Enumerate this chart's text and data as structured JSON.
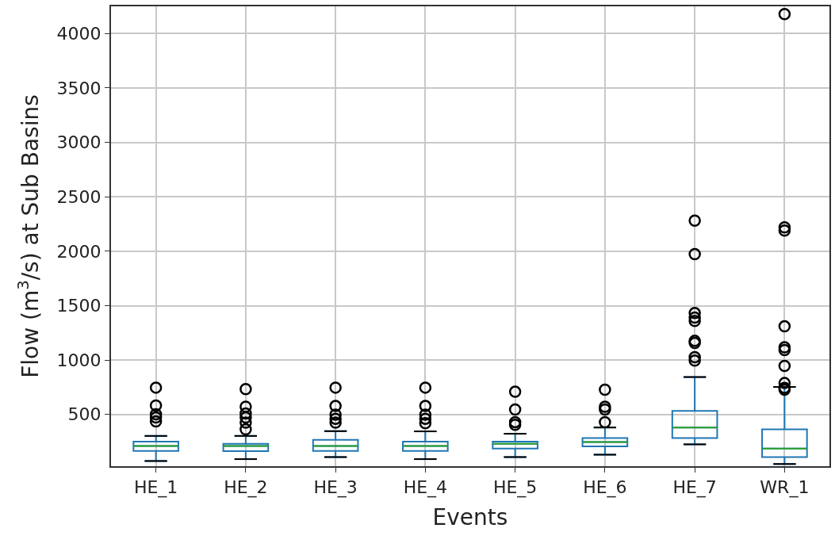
{
  "chart_data": {
    "type": "box",
    "xlabel": "Events",
    "ylabel": "Flow (m$^{3}$/s) at Sub Basins",
    "categories": [
      "HE_1",
      "HE_2",
      "HE_3",
      "HE_4",
      "HE_5",
      "HE_6",
      "HE_7",
      "WR_1"
    ],
    "series": [
      {
        "color": "#1f77b4",
        "boxes": [
          {
            "low": 73,
            "q1": 165,
            "median": 211,
            "q3": 250,
            "high": 303,
            "outliers": [
              747,
              582,
              502,
              473,
              437
            ]
          },
          {
            "low": 90,
            "q1": 163,
            "median": 211,
            "q3": 231,
            "high": 303,
            "outliers": [
              733,
              571,
              510,
              473,
              425,
              364
            ]
          },
          {
            "low": 109,
            "q1": 165,
            "median": 211,
            "q3": 267,
            "high": 347,
            "outliers": [
              747,
              578,
              498,
              461,
              425
            ]
          },
          {
            "low": 90,
            "q1": 165,
            "median": 211,
            "q3": 250,
            "high": 345,
            "outliers": [
              747,
              578,
              498,
              461,
              420
            ]
          },
          {
            "low": 109,
            "q1": 187,
            "median": 231,
            "q3": 250,
            "high": 323,
            "outliers": [
              709,
              546,
              430,
              405
            ]
          },
          {
            "low": 131,
            "q1": 207,
            "median": 247,
            "q3": 284,
            "high": 381,
            "outliers": [
              728,
              571,
              546,
              429
            ]
          },
          {
            "low": 226,
            "q1": 284,
            "median": 381,
            "q3": 534,
            "high": 844,
            "outliers": [
              2281,
              1973,
              1432,
              1390,
              1359,
              1177,
              1157,
              1026,
              995
            ]
          },
          {
            "low": 45,
            "q1": 109,
            "median": 187,
            "q3": 364,
            "high": 753,
            "outliers": [
              4179,
              2220,
              2190,
              1310,
              1117,
              1092,
              946,
              789,
              745,
              728
            ]
          }
        ]
      }
    ],
    "ylim": [
      25,
      4250
    ],
    "yticks": [
      500,
      1000,
      1500,
      2000,
      2500,
      3000,
      3500,
      4000
    ],
    "grid": true
  }
}
